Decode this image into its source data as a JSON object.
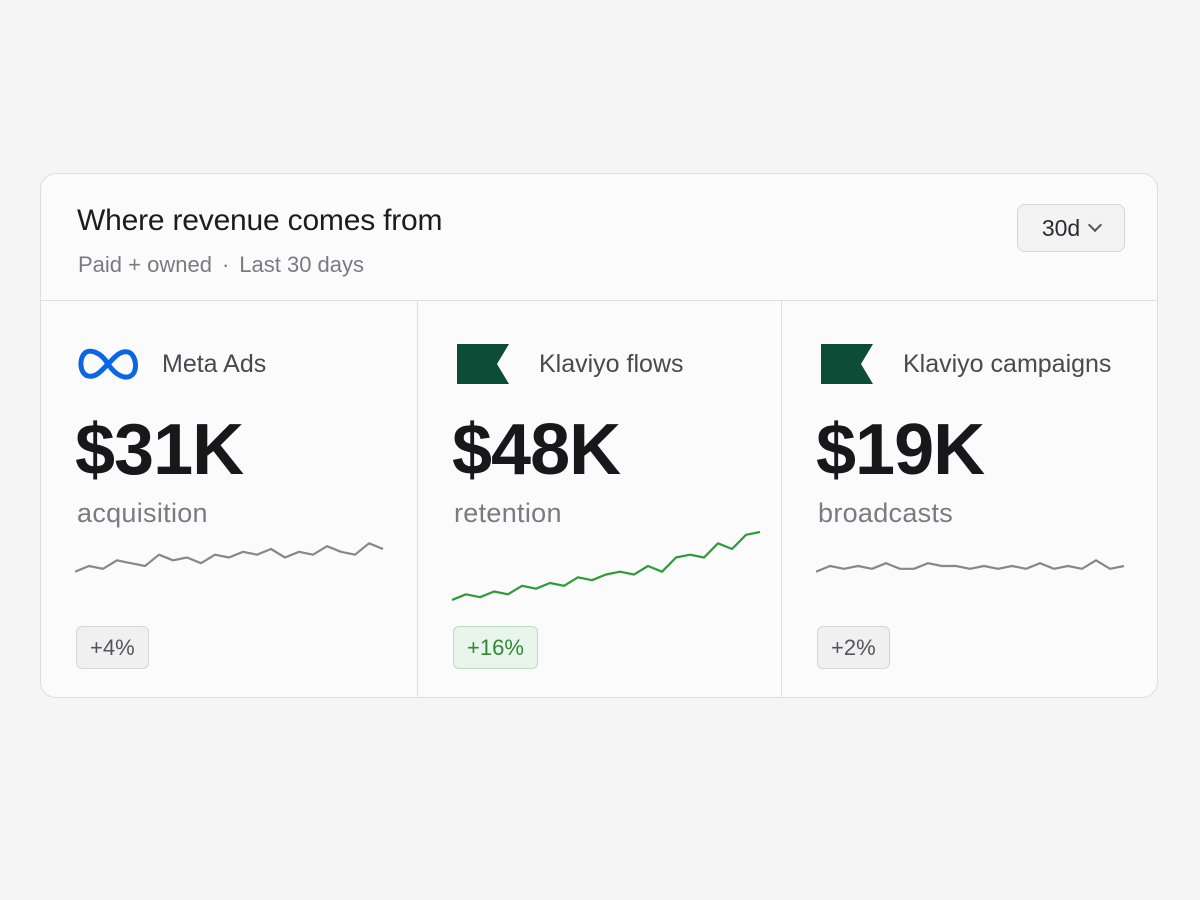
{
  "header": {
    "title": "Where revenue comes from",
    "subtitle_scope": "Paid + owned",
    "subtitle_sep": "·",
    "subtitle_period": "Last 30 days",
    "range_value": "30d"
  },
  "sources": [
    {
      "name": "Meta Ads",
      "value": "$31K",
      "label": "acquisition",
      "change": "+4%",
      "logo": "meta-logo-icon",
      "line_color": "#888888",
      "trend": [
        20,
        22,
        21,
        24,
        23,
        22,
        26,
        24,
        25,
        23,
        26,
        25,
        27,
        26,
        28,
        25,
        27,
        26,
        29,
        27,
        26,
        30,
        28
      ]
    },
    {
      "name": "Klaviyo flows",
      "value": "$48K",
      "label": "retention",
      "change": "+16%",
      "logo": "klaviyo-flag-icon",
      "line_color": "#2e9a3a",
      "trend": [
        10,
        12,
        11,
        13,
        12,
        15,
        14,
        16,
        15,
        18,
        17,
        19,
        20,
        19,
        22,
        20,
        25,
        26,
        25,
        30,
        28,
        33,
        34
      ]
    },
    {
      "name": "Klaviyo campaigns",
      "value": "$19K",
      "label": "broadcasts",
      "change": "+2%",
      "logo": "klaviyo-flag-icon",
      "line_color": "#888888",
      "trend": [
        20,
        22,
        21,
        22,
        21,
        23,
        21,
        21,
        23,
        22,
        22,
        21,
        22,
        21,
        22,
        21,
        23,
        21,
        22,
        21,
        24,
        21,
        22
      ]
    }
  ],
  "colors": {
    "accent_up": "#2e9a3a",
    "meta_blue": "#0a66e4",
    "klaviyo_green": "#0d4d38"
  }
}
